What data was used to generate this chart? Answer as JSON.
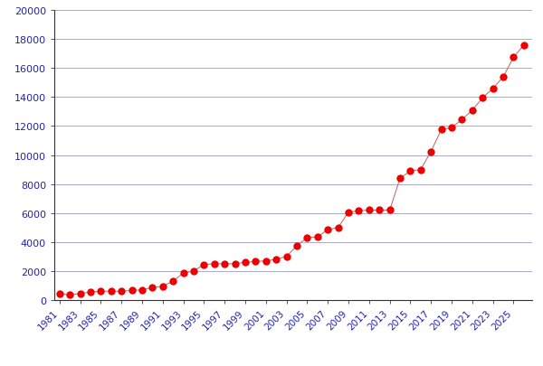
{
  "years": [
    1981,
    1982,
    1983,
    1984,
    1985,
    1986,
    1987,
    1988,
    1989,
    1990,
    1991,
    1992,
    1993,
    1994,
    1995,
    1996,
    1997,
    1998,
    1999,
    2000,
    2001,
    2002,
    2003,
    2004,
    2005,
    2006,
    2007,
    2008,
    2009,
    2010,
    2011,
    2012,
    2013,
    2014,
    2015,
    2016,
    2017,
    2018,
    2019,
    2020,
    2021,
    2022,
    2023,
    2024,
    2025,
    2026
  ],
  "values": [
    450,
    350,
    450,
    550,
    600,
    600,
    600,
    650,
    700,
    850,
    950,
    1300,
    1850,
    2000,
    2450,
    2500,
    2500,
    2500,
    2600,
    2650,
    2700,
    2800,
    3000,
    3750,
    4300,
    4350,
    4850,
    5000,
    6050,
    6150,
    6200,
    6200,
    6200,
    8400,
    8900,
    9000,
    10250,
    11750,
    11900,
    12450,
    13100,
    13950,
    14600,
    15400,
    16750,
    17600
  ],
  "line_color": "#c87070",
  "marker_color": "#ee0000",
  "marker_size": 6,
  "line_width": 0.8,
  "grid_color": "#aaaacc",
  "background_color": "#ffffff",
  "spine_color": "#333333",
  "tick_label_color": "#2222aa",
  "ylim": [
    0,
    20000
  ],
  "ytick_step": 2000,
  "xlim_min": 1980.5,
  "xlim_max": 2026.8,
  "xtick_start": 1981,
  "xtick_end": 2026,
  "xtick_step": 2,
  "tick_fontsize": 7.5,
  "ytick_fontsize": 8
}
